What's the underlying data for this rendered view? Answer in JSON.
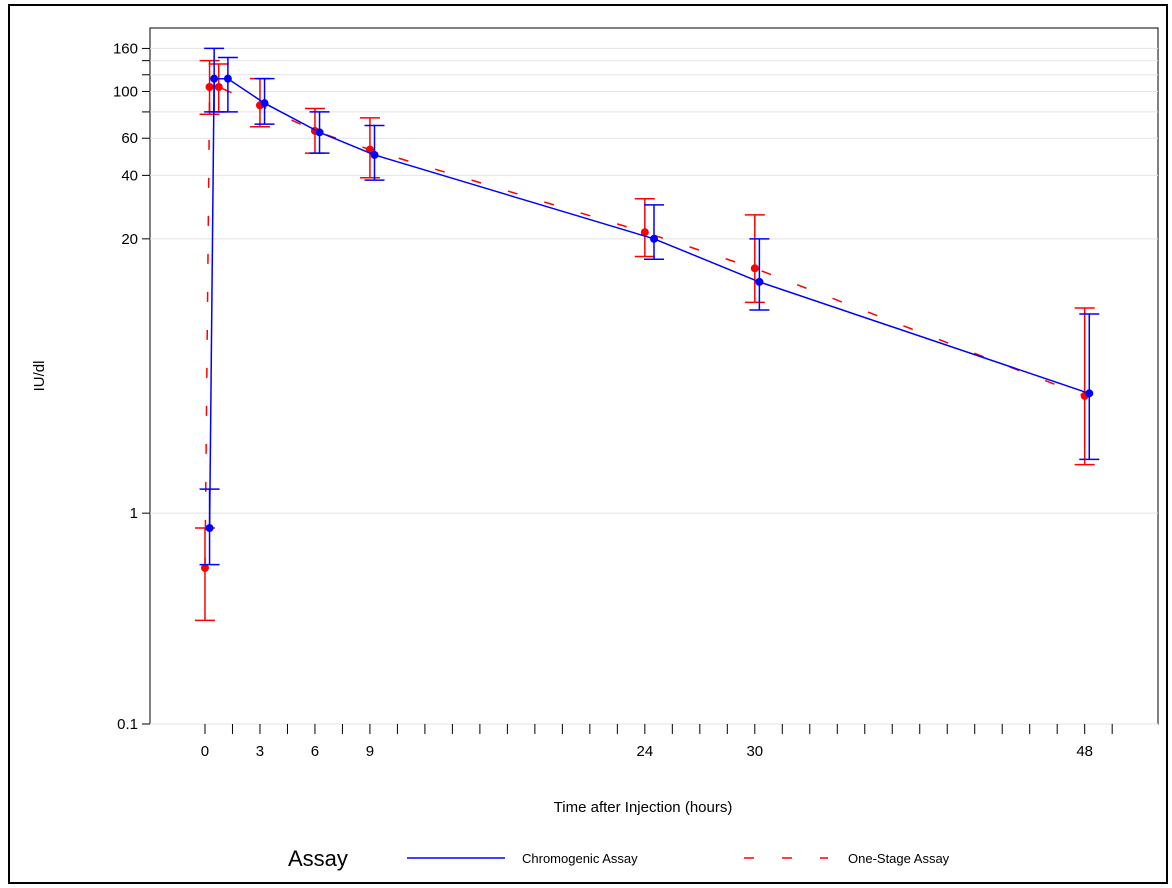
{
  "chart_data": {
    "type": "line",
    "title": "",
    "xlabel": "Time after Injection (hours)",
    "ylabel": "IU/dl",
    "yscale": "log",
    "xlim": [
      -3,
      52
    ],
    "ylim": [
      0.1,
      200
    ],
    "grid": true,
    "x_ticks": [
      0,
      3,
      6,
      9,
      24,
      30,
      48
    ],
    "x_tick_labels": [
      "0",
      "3",
      "6",
      "9",
      "24",
      "30",
      "48"
    ],
    "x_minor_ticks": [
      1.5,
      4.5,
      7.5,
      10.5,
      12,
      13.5,
      15,
      16.5,
      18,
      19.5,
      21,
      22.5,
      25.5,
      27,
      28.5,
      31.5,
      33,
      34.5,
      36,
      37.5,
      39,
      40.5,
      42,
      43.5,
      45,
      46.5,
      49.5
    ],
    "y_ticks": [
      0.1,
      1,
      20,
      40,
      60,
      100,
      160
    ],
    "y_tick_labels": [
      "0.1",
      "1",
      "20",
      "40",
      "60",
      "100",
      "160"
    ],
    "y_minor_ticks": [
      140,
      120,
      80
    ],
    "legend": {
      "title": "Assay",
      "position": "bottom",
      "entries": [
        "Chromogenic Assay",
        "One-Stage Assay"
      ]
    },
    "series": [
      {
        "name": "Chromogenic Assay",
        "color": "#0000ff",
        "line_style": "solid",
        "x": [
          0.25,
          0.5,
          1.25,
          3.25,
          6.25,
          9.25,
          24.5,
          30.25,
          48.25
        ],
        "y": [
          0.85,
          115,
          115,
          88,
          64,
          50,
          20,
          12.5,
          3.7
        ],
        "y_low": [
          0.57,
          80,
          80,
          70,
          51,
          38,
          16,
          9.2,
          1.8
        ],
        "y_high": [
          1.3,
          160,
          145,
          115,
          80,
          69,
          29,
          20,
          8.8
        ]
      },
      {
        "name": "One-Stage Assay",
        "color": "#ff0000",
        "line_style": "dashed",
        "x": [
          0,
          0.25,
          0.75,
          3,
          6,
          9,
          24,
          30,
          48
        ],
        "y": [
          0.55,
          105,
          105,
          86,
          65,
          53,
          21.5,
          14.5,
          3.6
        ],
        "y_low": [
          0.31,
          78,
          80,
          68,
          51,
          39,
          16.5,
          10,
          1.7
        ],
        "y_high": [
          0.85,
          140,
          135,
          115,
          83,
          75,
          31,
          26,
          9.4
        ]
      }
    ]
  }
}
